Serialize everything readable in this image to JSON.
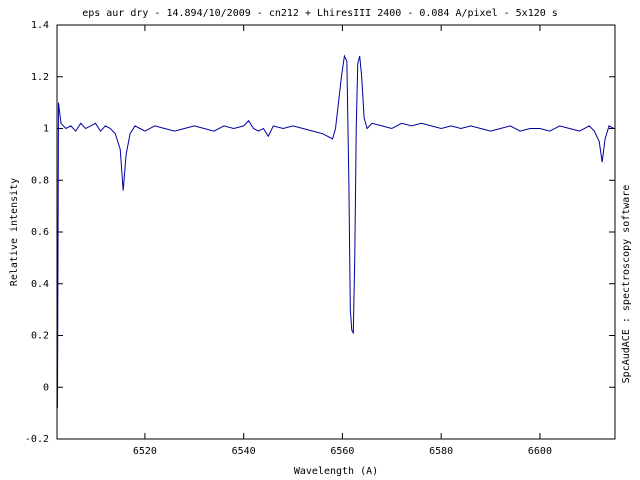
{
  "chart_data": {
    "type": "line",
    "title": "eps aur dry - 14.894/10/2009 - cn212 + LhiresIII 2400 - 0.084 A/pixel - 5x120 s",
    "x_label": "Wavelength (A)",
    "y_label": "Relative intensity",
    "side_note": "SpcAudACE : spectroscopy software",
    "color": "#0000a0",
    "xlim": [
      6502.2,
      6615.2
    ],
    "xticks": [
      6520,
      6540,
      6560,
      6580,
      6600
    ],
    "ylim": [
      -0.2,
      1.4
    ],
    "yticks": [
      -0.2,
      0,
      0.2,
      0.4,
      0.6,
      0.8,
      1,
      1.2,
      1.4
    ],
    "grid": false,
    "x": [
      6502.3,
      6502.5,
      6503,
      6504,
      6505,
      6506,
      6507,
      6508,
      6509,
      6510,
      6511,
      6512,
      6513,
      6514,
      6515,
      6515.6,
      6516.2,
      6517,
      6518,
      6519,
      6520,
      6522,
      6524,
      6526,
      6528,
      6530,
      6532,
      6534,
      6536,
      6538,
      6540,
      6541,
      6542,
      6543,
      6544,
      6545,
      6546,
      6548,
      6550,
      6552,
      6554,
      6556,
      6557,
      6558,
      6558.6,
      6559.2,
      6559.8,
      6560.4,
      6560.9,
      6561.3,
      6561.6,
      6561.9,
      6562.2,
      6562.5,
      6562.8,
      6563.1,
      6563.5,
      6563.9,
      6564.4,
      6565,
      6566,
      6568,
      6570,
      6572,
      6574,
      6576,
      6578,
      6580,
      6582,
      6584,
      6586,
      6588,
      6590,
      6592,
      6594,
      6596,
      6598,
      6600,
      6602,
      6604,
      6606,
      6608,
      6610,
      6611,
      6612,
      6612.6,
      6613.2,
      6614,
      6615
    ],
    "values": [
      -0.08,
      1.1,
      1.02,
      1.0,
      1.01,
      0.99,
      1.02,
      1.0,
      1.01,
      1.02,
      0.99,
      1.01,
      1.0,
      0.98,
      0.92,
      0.76,
      0.9,
      0.98,
      1.01,
      1.0,
      0.99,
      1.01,
      1.0,
      0.99,
      1.0,
      1.01,
      1.0,
      0.99,
      1.01,
      1.0,
      1.01,
      1.03,
      1.0,
      0.99,
      1.0,
      0.97,
      1.01,
      1.0,
      1.01,
      1.0,
      0.99,
      0.98,
      0.97,
      0.96,
      1.0,
      1.1,
      1.2,
      1.28,
      1.26,
      0.8,
      0.3,
      0.22,
      0.21,
      0.5,
      1.0,
      1.25,
      1.28,
      1.2,
      1.04,
      1.0,
      1.02,
      1.01,
      1.0,
      1.02,
      1.01,
      1.02,
      1.01,
      1.0,
      1.01,
      1.0,
      1.01,
      1.0,
      0.99,
      1.0,
      1.01,
      0.99,
      1.0,
      1.0,
      0.99,
      1.01,
      1.0,
      0.99,
      1.01,
      0.99,
      0.95,
      0.87,
      0.96,
      1.01,
      1.0
    ]
  }
}
